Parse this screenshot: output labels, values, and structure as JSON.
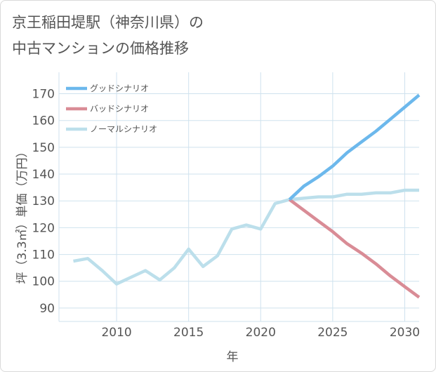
{
  "title": {
    "line1": "京王稲田堤駅（神奈川県）の",
    "line2": "中古マンションの価格推移"
  },
  "chart_data": {
    "type": "line",
    "xlabel": "年",
    "ylabel": "坪（3.3㎡）単価（万円）",
    "xlim": [
      2006,
      2031
    ],
    "ylim": [
      85,
      178
    ],
    "xticks": [
      2010,
      2015,
      2020,
      2025,
      2030
    ],
    "yticks": [
      90,
      100,
      110,
      120,
      130,
      140,
      150,
      160,
      170
    ],
    "legend_position": "top-left",
    "series": [
      {
        "name": "グッドシナリオ",
        "color": "#6cb8ec",
        "x": [
          2022,
          2023,
          2024,
          2025,
          2026,
          2027,
          2028,
          2029,
          2030,
          2031
        ],
        "values": [
          130.5,
          135.5,
          139,
          143,
          148,
          152,
          156,
          160.5,
          165,
          169.5
        ]
      },
      {
        "name": "バッドシナリオ",
        "color": "#d98c96",
        "x": [
          2022,
          2023,
          2024,
          2025,
          2026,
          2027,
          2028,
          2029,
          2030,
          2031
        ],
        "values": [
          130.5,
          126.5,
          122.5,
          118.5,
          114,
          110.5,
          106.5,
          102,
          98,
          94
        ]
      },
      {
        "name": "ノーマルシナリオ",
        "color": "#bcdfeb",
        "x": [
          2007,
          2008,
          2009,
          2010,
          2011,
          2012,
          2013,
          2014,
          2015,
          2016,
          2017,
          2018,
          2019,
          2020,
          2021,
          2022,
          2023,
          2024,
          2025,
          2026,
          2027,
          2028,
          2029,
          2030,
          2031
        ],
        "values": [
          107.5,
          108.5,
          104,
          99,
          101.5,
          104,
          100.5,
          105,
          112,
          105.5,
          109.5,
          119.5,
          121,
          119.5,
          129,
          130.5,
          131,
          131.5,
          131.5,
          132.5,
          132.5,
          133,
          133,
          134,
          134
        ]
      }
    ]
  }
}
